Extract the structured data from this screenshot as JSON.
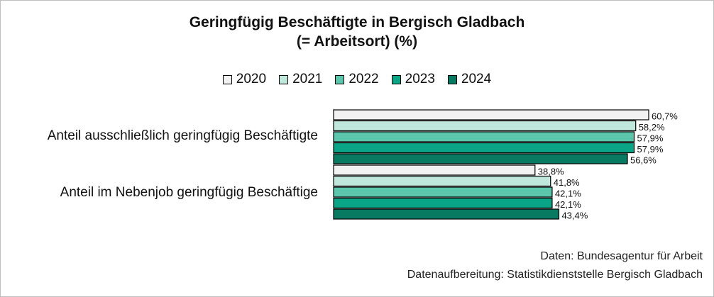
{
  "chart_data": {
    "type": "bar",
    "orientation": "horizontal",
    "title": "Geringfügig Beschäftigte in Bergisch Gladbach",
    "subtitle": "(= Arbeitsort) (%)",
    "categories": [
      "Anteil ausschließlich geringfügig Beschäftigte",
      "Anteil im Nebenjob geringfügig Beschäftige"
    ],
    "series": [
      {
        "name": "2020",
        "color": "#f2f2f2",
        "values": [
          60.7,
          38.8
        ],
        "labels": [
          "60,7%",
          "38,8%"
        ]
      },
      {
        "name": "2021",
        "color": "#bfe7dc",
        "values": [
          58.2,
          41.8
        ],
        "labels": [
          "58,2%",
          "41,8%"
        ]
      },
      {
        "name": "2022",
        "color": "#5cc6ac",
        "values": [
          57.9,
          42.1
        ],
        "labels": [
          "57,9%",
          "42,1%"
        ]
      },
      {
        "name": "2023",
        "color": "#0aa586",
        "values": [
          57.9,
          42.1
        ],
        "labels": [
          "57,9%",
          "42,1%"
        ]
      },
      {
        "name": "2024",
        "color": "#087a62",
        "values": [
          56.6,
          43.4
        ],
        "labels": [
          "56,6%",
          "43,4%"
        ]
      }
    ],
    "xlim": [
      0,
      100
    ],
    "legend_position": "top",
    "grid": false
  },
  "footer": {
    "line1": "Daten: Bundesagentur für Arbeit",
    "line2": "Datenaufbereitung: Statistikdienststelle Bergisch Gladbach"
  }
}
